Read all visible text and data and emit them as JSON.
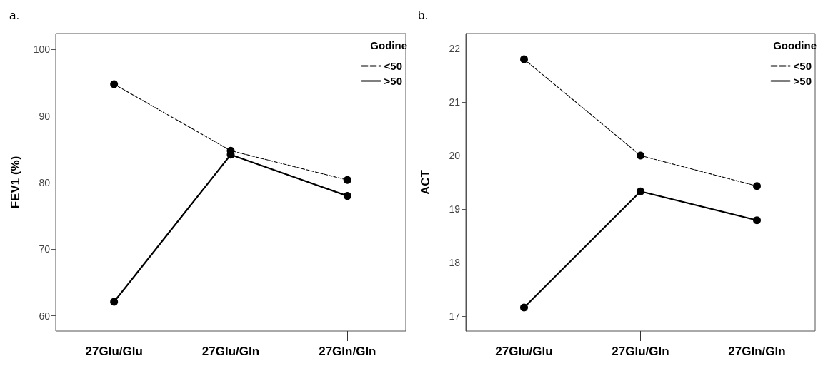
{
  "chart_data": [
    {
      "type": "line",
      "title": "a.",
      "ylabel": "FEV1 (%)",
      "legend_title": "Godine",
      "categories": [
        "27Glu/Glu",
        "27Glu/Gln",
        "27Gln/Gln"
      ],
      "series": [
        {
          "name": "<50",
          "color": "#000000",
          "line_style": "dashed",
          "values": [
            94.8,
            84.8,
            80.4
          ]
        },
        {
          "name": ">50",
          "color": "#000000",
          "line_style": "solid",
          "values": [
            62.1,
            84.2,
            78.0
          ]
        }
      ],
      "ylim": [
        57.7,
        102.4
      ],
      "yticks": [
        60,
        70,
        80,
        90,
        100
      ],
      "grid": false,
      "legend": "top right",
      "marker": "circle"
    },
    {
      "type": "line",
      "title": "b.",
      "ylabel": "ACT",
      "legend_title": "Goodine",
      "categories": [
        "27Glu/Glu",
        "27Glu/Gln",
        "27Gln/Gln"
      ],
      "series": [
        {
          "name": "<50",
          "color": "#000000",
          "line_style": "dashed",
          "values": [
            21.8,
            20.0,
            19.43
          ]
        },
        {
          "name": ">50",
          "color": "#000000",
          "line_style": "solid",
          "values": [
            17.16,
            19.33,
            18.79
          ]
        }
      ],
      "ylim": [
        16.72,
        22.28
      ],
      "yticks": [
        17,
        18,
        19,
        20,
        21,
        22
      ],
      "grid": false,
      "legend": "top right",
      "marker": "circle"
    }
  ]
}
